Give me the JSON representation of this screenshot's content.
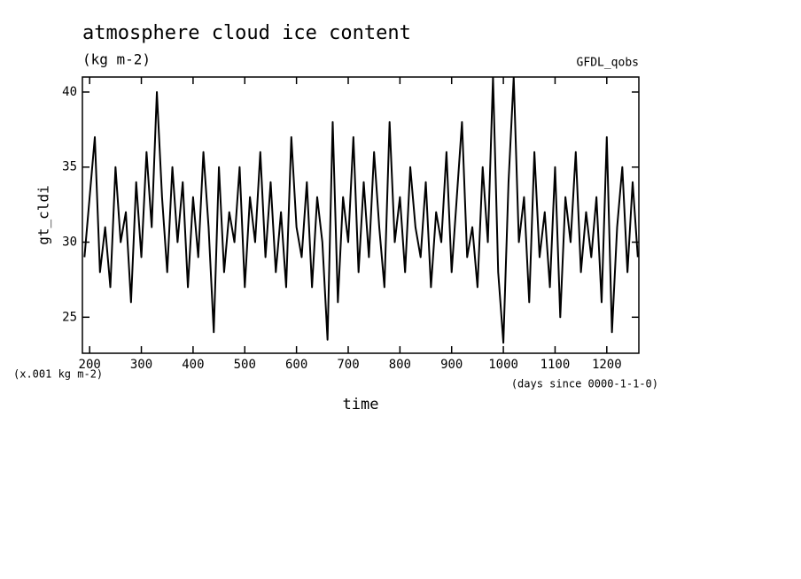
{
  "chart_data": {
    "type": "line",
    "title": "atmosphere cloud ice content",
    "subtitle": "(kg m-2)",
    "source": "GFDL_qobs",
    "y_label": "gt_cldi",
    "y_unit": "(x.001 kg m-2)",
    "x_label": "time",
    "x_unit": "(days since 0000-1-1-0)",
    "x": [
      190,
      200,
      210,
      220,
      230,
      240,
      250,
      260,
      270,
      280,
      290,
      300,
      310,
      320,
      330,
      340,
      350,
      360,
      370,
      380,
      390,
      400,
      410,
      420,
      430,
      440,
      450,
      460,
      470,
      480,
      490,
      500,
      510,
      520,
      530,
      540,
      550,
      560,
      570,
      580,
      590,
      600,
      610,
      620,
      630,
      640,
      650,
      660,
      670,
      680,
      690,
      700,
      710,
      720,
      730,
      740,
      750,
      760,
      770,
      780,
      790,
      800,
      810,
      820,
      830,
      840,
      850,
      860,
      870,
      880,
      890,
      900,
      910,
      920,
      930,
      940,
      950,
      960,
      970,
      980,
      990,
      1000,
      1010,
      1020,
      1030,
      1040,
      1050,
      1060,
      1070,
      1080,
      1090,
      1100,
      1110,
      1120,
      1130,
      1140,
      1150,
      1160,
      1170,
      1180,
      1190,
      1200,
      1210,
      1220,
      1230,
      1240,
      1250,
      1260
    ],
    "series": [
      {
        "name": "gt_cldi",
        "color": "#000000",
        "values": [
          29,
          33,
          37,
          28,
          31,
          27,
          35,
          30,
          32,
          26,
          34,
          29,
          36,
          31,
          40,
          33,
          28,
          35,
          30,
          34,
          27,
          33,
          29,
          36,
          31,
          24,
          35,
          28,
          32,
          30,
          35,
          27,
          33,
          30,
          36,
          29,
          34,
          28,
          32,
          27,
          37,
          31,
          29,
          34,
          27,
          33,
          30,
          23.5,
          38,
          26,
          33,
          30,
          37,
          28,
          34,
          29,
          36,
          31,
          27,
          38,
          30,
          33,
          28,
          35,
          31,
          29,
          34,
          27,
          32,
          30,
          36,
          28,
          33,
          38,
          29,
          31,
          27,
          35,
          30,
          41,
          28,
          23.3,
          34,
          41,
          30,
          33,
          26,
          36,
          29,
          32,
          27,
          35,
          25,
          33,
          30,
          36,
          28,
          32,
          29,
          33,
          26,
          37,
          24,
          31,
          35,
          28,
          34,
          29
        ]
      }
    ],
    "xlim": [
      186,
      1262
    ],
    "ylim": [
      22.6,
      41
    ],
    "xticks": [
      200,
      300,
      400,
      500,
      600,
      700,
      800,
      900,
      1000,
      1100,
      1200
    ],
    "yticks": [
      25,
      30,
      35,
      40
    ]
  }
}
